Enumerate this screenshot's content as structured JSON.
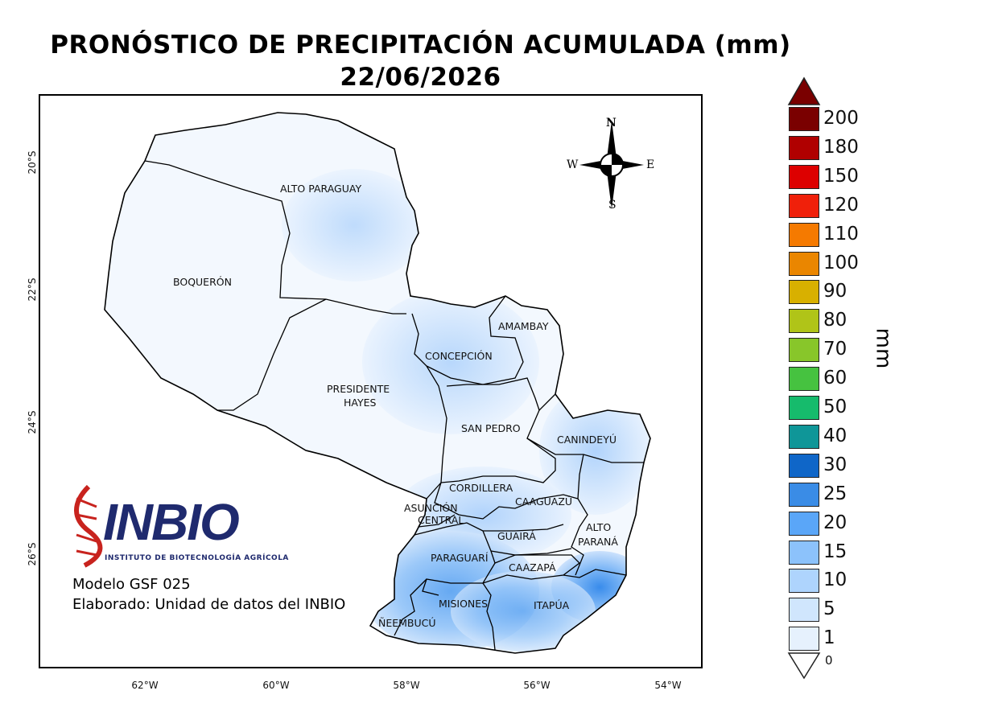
{
  "title": "PRONÓSTICO DE PRECIPITACIÓN ACUMULADA (mm)",
  "date": "22/06/2026",
  "lat_labels": [
    "20°S",
    "22°S",
    "24°S",
    "26°S"
  ],
  "lon_labels": [
    "62°W",
    "60°W",
    "58°W",
    "56°W",
    "54°W"
  ],
  "compass": {
    "n": "N",
    "s": "S",
    "e": "E",
    "w": "W"
  },
  "departments": {
    "alto_paraguay": "ALTO PARAGUAY",
    "boqueron": "BOQUERÓN",
    "presidente_hayes_1": "PRESIDENTE",
    "presidente_hayes_2": "HAYES",
    "concepcion": "CONCEPCIÓN",
    "amambay": "AMAMBAY",
    "san_pedro": "SAN PEDRO",
    "canindeyu": "CANINDEYÚ",
    "cordillera": "CORDILLERA",
    "asuncion_1": "ASUNCIÓN",
    "asuncion_2": "CENTRAL",
    "caaguazu": "CAAGUAZÚ",
    "alto_parana_1": "ALTO",
    "alto_parana_2": "PARANÁ",
    "guaira": "GUAIRÁ",
    "paraguari": "PARAGUARÍ",
    "caazapa": "CAAZAPÁ",
    "misiones": "MISIONES",
    "itapua": "ITAPÚA",
    "neembucu": "ÑEEMBUCÚ"
  },
  "logo": {
    "name": "INBIO",
    "subtitle": "INSTITUTO DE BIOTECNOLOGÍA AGRÍCOLA"
  },
  "info": {
    "model": "Modelo GSF 025",
    "made_by": "Elaborado: Unidad de datos del INBIO"
  },
  "legend": {
    "unit": "mm",
    "zero_label": "0",
    "items": [
      {
        "label": "200",
        "color": "#7a0000"
      },
      {
        "label": "180",
        "color": "#b00000"
      },
      {
        "label": "150",
        "color": "#dd0000"
      },
      {
        "label": "120",
        "color": "#f0200a"
      },
      {
        "label": "110",
        "color": "#f57a00"
      },
      {
        "label": "100",
        "color": "#ea8600"
      },
      {
        "label": "90",
        "color": "#d8b000"
      },
      {
        "label": "80",
        "color": "#b0c418"
      },
      {
        "label": "70",
        "color": "#88c62a"
      },
      {
        "label": "60",
        "color": "#46c240"
      },
      {
        "label": "50",
        "color": "#16bb6c"
      },
      {
        "label": "40",
        "color": "#0f9698"
      },
      {
        "label": "30",
        "color": "#0f66c8"
      },
      {
        "label": "25",
        "color": "#3a8ce6"
      },
      {
        "label": "20",
        "color": "#5aa6f8"
      },
      {
        "label": "15",
        "color": "#8cc2fb"
      },
      {
        "label": "10",
        "color": "#aed4fd"
      },
      {
        "label": "5",
        "color": "#d0e6fd"
      },
      {
        "label": "1",
        "color": "#e6f1fd"
      }
    ],
    "top_arrow_color": "#7a0000",
    "bottom_arrow_color": "#ffffff"
  }
}
